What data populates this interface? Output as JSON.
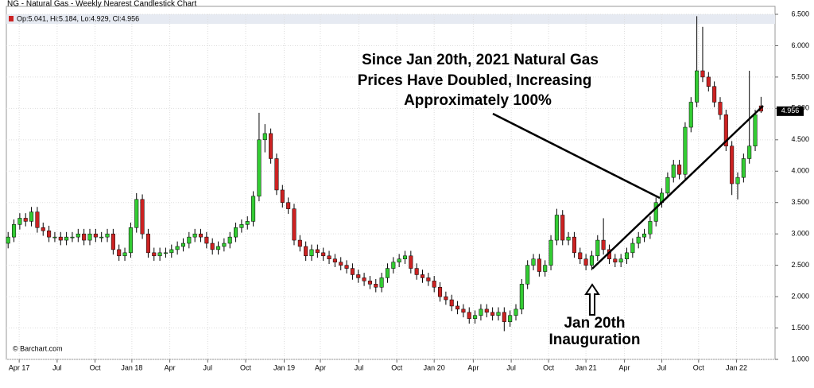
{
  "chart_data": {
    "type": "candlestick",
    "title": "NG - Natural Gas - Weekly Nearest Candlestick Chart",
    "legend": "Op:5.041, Hi:5.184, Lo:4.929, Cl:4.956",
    "source": "© Barchart.com",
    "annotations": [
      "Since Jan 20th, 2021 Natural Gas",
      "Prices Have Doubled, Increasing",
      "Approximately 100%",
      "Jan 20th",
      "Inauguration"
    ],
    "up_color": "#33cc33",
    "down_color": "#cc2222",
    "xlim": [
      -0.3,
      131.4
    ],
    "xticks": [
      {
        "value": 1.9,
        "label": "Apr 17"
      },
      {
        "value": 8.4,
        "label": "Jul"
      },
      {
        "value": 14.9,
        "label": "Oct"
      },
      {
        "value": 21.2,
        "label": "Jan 18"
      },
      {
        "value": 27.7,
        "label": "Apr"
      },
      {
        "value": 34.2,
        "label": "Jul"
      },
      {
        "value": 40.7,
        "label": "Oct"
      },
      {
        "value": 47.3,
        "label": "Jan 19"
      },
      {
        "value": 53.5,
        "label": "Apr"
      },
      {
        "value": 60.1,
        "label": "Jul"
      },
      {
        "value": 66.6,
        "label": "Oct"
      },
      {
        "value": 73.0,
        "label": "Jan 20"
      },
      {
        "value": 79.7,
        "label": "Apr"
      },
      {
        "value": 86.2,
        "label": "Jul"
      },
      {
        "value": 92.6,
        "label": "Oct"
      },
      {
        "value": 99.0,
        "label": "Jan 21"
      },
      {
        "value": 105.6,
        "label": "Apr"
      },
      {
        "value": 112.0,
        "label": "Jul"
      },
      {
        "value": 118.3,
        "label": "Oct"
      },
      {
        "value": 124.8,
        "label": "Jan 22"
      }
    ],
    "ylim": [
      1.0,
      6.5
    ],
    "yticks": [
      {
        "value": 1.0,
        "label": "1.000"
      },
      {
        "value": 1.5,
        "label": "1.500"
      },
      {
        "value": 2.0,
        "label": "2.000"
      },
      {
        "value": 2.5,
        "label": "2.500"
      },
      {
        "value": 3.0,
        "label": "3.000"
      },
      {
        "value": 3.5,
        "label": "3.500"
      },
      {
        "value": 4.0,
        "label": "4.000"
      },
      {
        "value": 4.5,
        "label": "4.500"
      },
      {
        "value": 5.0,
        "label": "5.000"
      },
      {
        "value": 5.5,
        "label": "5.500"
      },
      {
        "value": 6.0,
        "label": "6.000"
      },
      {
        "value": 6.5,
        "label": "6.500"
      }
    ],
    "grid": true,
    "open": [
      2.85,
      2.95,
      3.15,
      3.25,
      3.2,
      3.35,
      3.1,
      3.05,
      2.95,
      2.95,
      2.9,
      2.95,
      2.95,
      3.0,
      2.9,
      3.0,
      2.95,
      2.95,
      3.0,
      2.75,
      2.65,
      2.7,
      3.1,
      3.55,
      3.0,
      2.7,
      2.65,
      2.7,
      2.7,
      2.75,
      2.8,
      2.85,
      2.95,
      3.0,
      2.95,
      2.85,
      2.75,
      2.8,
      2.85,
      2.95,
      3.1,
      3.15,
      3.2,
      3.6,
      4.5,
      4.6,
      4.2,
      3.7,
      3.5,
      3.4,
      2.9,
      2.8,
      2.65,
      2.75,
      2.7,
      2.65,
      2.6,
      2.55,
      2.5,
      2.45,
      2.35,
      2.3,
      2.25,
      2.2,
      2.15,
      2.3,
      2.45,
      2.55,
      2.6,
      2.65,
      2.45,
      2.35,
      2.3,
      2.25,
      2.15,
      2.0,
      1.95,
      1.85,
      1.8,
      1.75,
      1.65,
      1.7,
      1.8,
      1.75,
      1.7,
      1.75,
      1.6,
      1.7,
      1.8,
      2.2,
      2.5,
      2.6,
      2.4,
      2.5,
      2.9,
      3.3,
      2.9,
      2.95,
      2.7,
      2.6,
      2.5,
      2.65,
      2.9,
      2.75,
      2.6,
      2.55,
      2.6,
      2.7,
      2.85,
      2.95,
      3.0,
      3.2,
      3.5,
      3.65,
      3.9,
      4.1,
      3.95,
      4.7,
      5.1,
      5.6,
      5.5,
      5.35,
      5.1,
      4.9,
      4.4,
      3.8,
      3.9,
      4.2,
      4.4,
      5.041
    ],
    "high": [
      3.03,
      3.23,
      3.33,
      3.33,
      3.43,
      3.43,
      3.18,
      3.13,
      3.03,
      3.03,
      3.03,
      3.03,
      3.08,
      3.08,
      3.08,
      3.08,
      3.03,
      3.08,
      3.08,
      2.83,
      2.78,
      3.18,
      3.65,
      3.63,
      3.08,
      2.78,
      2.78,
      2.78,
      2.83,
      2.88,
      2.93,
      3.03,
      3.08,
      3.08,
      3.03,
      2.93,
      2.88,
      2.93,
      3.03,
      3.18,
      3.23,
      3.28,
      3.68,
      4.93,
      4.75,
      4.68,
      4.28,
      3.78,
      3.58,
      3.48,
      2.98,
      2.88,
      2.83,
      2.83,
      2.78,
      2.73,
      2.68,
      2.63,
      2.58,
      2.53,
      2.43,
      2.38,
      2.33,
      2.28,
      2.38,
      2.53,
      2.63,
      2.68,
      2.73,
      2.73,
      2.53,
      2.43,
      2.38,
      2.33,
      2.23,
      2.08,
      2.03,
      1.93,
      1.88,
      1.83,
      1.78,
      1.88,
      1.88,
      1.83,
      1.83,
      1.83,
      1.78,
      1.88,
      2.28,
      2.58,
      2.68,
      2.68,
      2.58,
      2.98,
      3.4,
      3.38,
      3.03,
      3.03,
      2.78,
      2.68,
      2.73,
      2.98,
      3.25,
      2.83,
      2.68,
      2.68,
      2.78,
      2.93,
      3.03,
      3.08,
      3.28,
      3.58,
      3.73,
      3.98,
      4.18,
      4.18,
      4.78,
      5.18,
      6.47,
      6.3,
      5.58,
      5.43,
      5.18,
      4.98,
      4.48,
      3.98,
      4.28,
      5.6,
      4.98,
      5.184
    ],
    "low": [
      2.77,
      2.87,
      3.07,
      3.12,
      3.12,
      3.02,
      2.97,
      2.87,
      2.87,
      2.82,
      2.82,
      2.87,
      2.87,
      2.82,
      2.82,
      2.87,
      2.87,
      2.87,
      2.67,
      2.57,
      2.57,
      2.62,
      3.02,
      2.92,
      2.62,
      2.57,
      2.57,
      2.62,
      2.62,
      2.67,
      2.72,
      2.77,
      2.87,
      2.87,
      2.77,
      2.67,
      2.67,
      2.72,
      2.77,
      2.87,
      3.02,
      3.07,
      3.12,
      3.52,
      4.3,
      4.12,
      3.62,
      3.42,
      3.32,
      2.82,
      2.72,
      2.57,
      2.57,
      2.62,
      2.57,
      2.52,
      2.47,
      2.42,
      2.37,
      2.27,
      2.22,
      2.17,
      2.12,
      2.07,
      2.07,
      2.22,
      2.37,
      2.47,
      2.52,
      2.37,
      2.27,
      2.22,
      2.17,
      2.07,
      1.92,
      1.87,
      1.77,
      1.72,
      1.67,
      1.57,
      1.57,
      1.62,
      1.67,
      1.62,
      1.62,
      1.45,
      1.52,
      1.62,
      1.72,
      2.12,
      2.42,
      2.32,
      2.32,
      2.42,
      2.82,
      2.82,
      2.82,
      2.62,
      2.52,
      2.42,
      2.42,
      2.57,
      2.67,
      2.52,
      2.47,
      2.47,
      2.52,
      2.62,
      2.77,
      2.87,
      2.92,
      3.12,
      3.42,
      3.57,
      3.82,
      3.87,
      3.87,
      4.62,
      5.02,
      5.42,
      5.27,
      5.02,
      4.82,
      4.32,
      3.62,
      3.55,
      3.82,
      4.12,
      4.32,
      4.929
    ],
    "close": [
      2.95,
      3.15,
      3.25,
      3.2,
      3.35,
      3.1,
      3.05,
      2.95,
      2.95,
      2.9,
      2.95,
      2.95,
      3.0,
      2.9,
      3.0,
      2.95,
      2.95,
      3.0,
      2.75,
      2.65,
      2.7,
      3.1,
      3.55,
      3.0,
      2.7,
      2.65,
      2.7,
      2.7,
      2.75,
      2.8,
      2.85,
      2.95,
      3.0,
      2.95,
      2.85,
      2.75,
      2.8,
      2.85,
      2.95,
      3.1,
      3.15,
      3.2,
      3.6,
      4.5,
      4.6,
      4.2,
      3.7,
      3.5,
      3.4,
      2.9,
      2.8,
      2.65,
      2.75,
      2.7,
      2.65,
      2.6,
      2.55,
      2.5,
      2.45,
      2.35,
      2.3,
      2.25,
      2.2,
      2.15,
      2.3,
      2.45,
      2.55,
      2.6,
      2.65,
      2.45,
      2.35,
      2.3,
      2.25,
      2.15,
      2.0,
      1.95,
      1.85,
      1.8,
      1.75,
      1.65,
      1.7,
      1.8,
      1.75,
      1.7,
      1.75,
      1.6,
      1.7,
      1.8,
      2.2,
      2.5,
      2.6,
      2.4,
      2.5,
      2.9,
      3.3,
      2.9,
      2.95,
      2.7,
      2.6,
      2.5,
      2.65,
      2.9,
      2.75,
      2.6,
      2.55,
      2.6,
      2.7,
      2.85,
      2.95,
      3.0,
      3.2,
      3.5,
      3.65,
      3.9,
      4.1,
      3.95,
      4.7,
      5.1,
      5.6,
      5.5,
      5.35,
      5.1,
      4.9,
      4.4,
      3.8,
      3.9,
      4.2,
      4.4,
      4.9,
      4.956
    ]
  }
}
